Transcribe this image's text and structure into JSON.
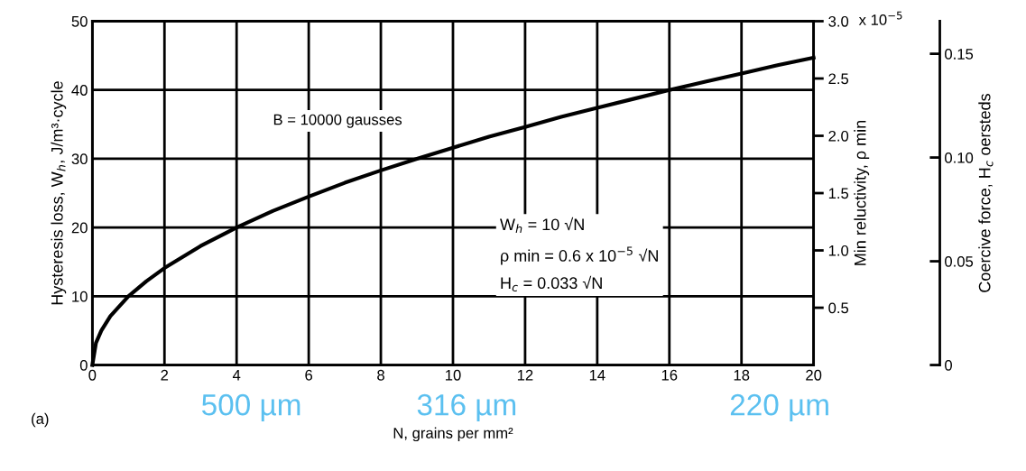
{
  "chart_data": {
    "type": "line",
    "xlabel": "N, grains per mm²",
    "ylabel": "Hysteresis loss, W$_{h}$, J/m³·cycle",
    "y2label": "Min reluctivity, ρ min",
    "y3label": "Coercive force, H$_{c}$ oersteds",
    "x": [
      0,
      0.1,
      0.25,
      0.5,
      1,
      1.5,
      2,
      3,
      4,
      5,
      6,
      7,
      8,
      9,
      10,
      11,
      12,
      13,
      14,
      15,
      16,
      17,
      18,
      19,
      20
    ],
    "series": [
      {
        "color": "#000000",
        "values": [
          0,
          3.2,
          5,
          7.1,
          10,
          12.2,
          14.1,
          17.3,
          20,
          22.4,
          24.5,
          26.5,
          28.3,
          30,
          31.6,
          33.2,
          34.6,
          36.1,
          37.4,
          38.7,
          40,
          41.2,
          42.4,
          43.6,
          44.7
        ]
      }
    ],
    "xlim": [
      0,
      20
    ],
    "xticks": [
      0,
      2,
      4,
      6,
      8,
      10,
      12,
      14,
      16,
      18,
      20
    ],
    "ylim": [
      0,
      50
    ],
    "yticks": [
      0,
      10,
      20,
      30,
      40,
      50
    ],
    "y2lim": [
      0,
      3.0
    ],
    "y2ticks": [
      0.5,
      {
        "value": 1.0,
        "label": "1.0"
      },
      1.5,
      {
        "value": 2.0,
        "label": "2.0"
      },
      2.5,
      {
        "value": 3.0,
        "label": "3.0"
      }
    ],
    "y3lim": [
      0,
      0.1657
    ],
    "y3ticks": [
      0,
      {
        "value": 0.05,
        "label": "0.05"
      },
      {
        "value": 0.1,
        "label": "0.10"
      },
      0.15
    ],
    "grid": true,
    "line_style": "solid",
    "marker": "none",
    "annotations": [
      "B = 10000 gausses",
      "W$_{h}$ = 10 √N\nρ min = 0.6 x 10$^{−5}$ √N\nH$_{c}$ = 0.033 √N",
      "(a)",
      "500 µm",
      "316 µm",
      "220 µm",
      "x 10$^{−5}$"
    ]
  }
}
